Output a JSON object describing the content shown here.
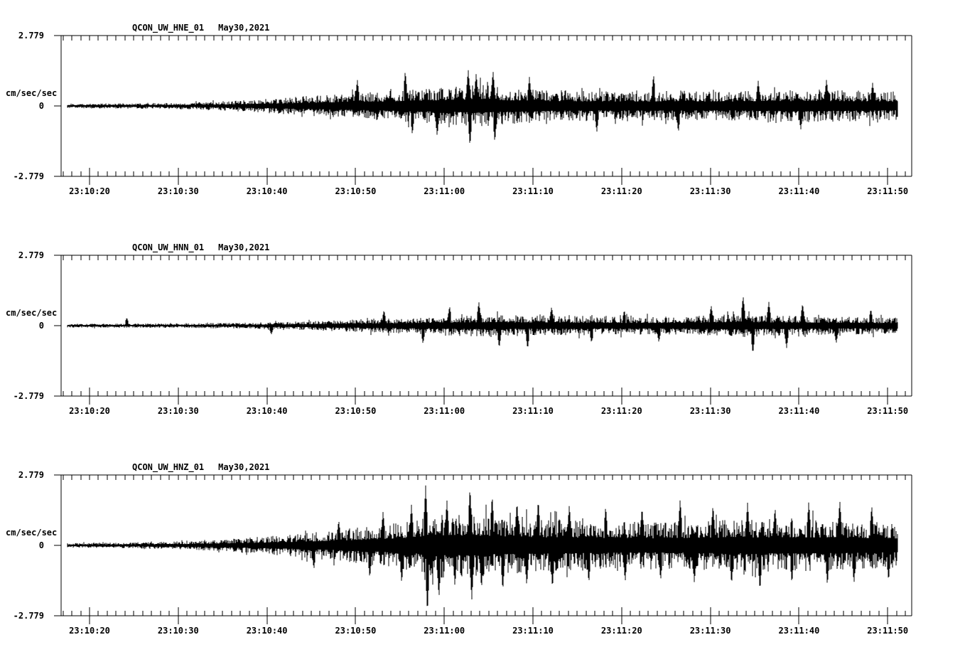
{
  "figure": {
    "background_color": "#ffffff",
    "ink_color": "#000000"
  },
  "chart_data": {
    "type": "line",
    "subtype": "seismogram",
    "station": "QCON",
    "network": "UW",
    "location_code": "01",
    "date_label": "May30,2021",
    "ylabel": "cm/sec/sec",
    "ylim": [
      -2.779,
      2.779
    ],
    "ytick_labels": [
      "2.779",
      "0",
      "-2.779"
    ],
    "xtick_labels": [
      "23:10:20",
      "23:10:30",
      "23:10:40",
      "23:10:50",
      "23:11:00",
      "23:11:10",
      "23:11:20",
      "23:11:30",
      "23:11:40",
      "23:11:50"
    ],
    "xtick_seconds": [
      0,
      10,
      20,
      30,
      40,
      50,
      60,
      70,
      80,
      90
    ],
    "minor_tick_interval_s": 1,
    "grid": "off",
    "legend": "none",
    "time_axis": {
      "reference_time": "23:10:20",
      "axis_start_s": -3.2,
      "axis_end_s": 92.7,
      "data_start_s": -2.5,
      "data_end_s": 91.1
    },
    "series_note": "envelope = [seconds after 23:10:20, peak amplitude cm/sec/sec]; spikes = [seconds, signed peak amplitude]",
    "panels": [
      {
        "channel": "HNE",
        "title": "QCON_UW_HNE_01",
        "date": "May30,2021",
        "envelope": [
          [
            -2.5,
            0.09
          ],
          [
            0,
            0.1
          ],
          [
            6,
            0.11
          ],
          [
            12,
            0.14
          ],
          [
            17,
            0.22
          ],
          [
            22,
            0.33
          ],
          [
            27,
            0.45
          ],
          [
            32,
            0.55
          ],
          [
            36,
            0.65
          ],
          [
            40,
            0.75
          ],
          [
            44,
            0.85
          ],
          [
            47,
            0.75
          ],
          [
            51,
            0.65
          ],
          [
            56,
            0.6
          ],
          [
            61,
            0.57
          ],
          [
            66,
            0.62
          ],
          [
            71,
            0.57
          ],
          [
            76,
            0.62
          ],
          [
            81,
            0.65
          ],
          [
            86,
            0.62
          ],
          [
            91,
            0.57
          ]
        ],
        "spikes": [
          [
            30.2,
            1.05
          ],
          [
            35.6,
            1.4
          ],
          [
            36.4,
            -1.15
          ],
          [
            39.2,
            -1.2
          ],
          [
            42.7,
            1.45
          ],
          [
            42.9,
            -1.6
          ],
          [
            43.6,
            1.3
          ],
          [
            45.5,
            1.4
          ],
          [
            45.7,
            -1.45
          ],
          [
            49.6,
            1.15
          ],
          [
            57.2,
            -1.05
          ],
          [
            63.6,
            1.25
          ],
          [
            66.4,
            -1.05
          ],
          [
            75.4,
            1.0
          ],
          [
            80.2,
            -0.95
          ],
          [
            83.1,
            1.05
          ],
          [
            88.3,
            0.92
          ]
        ]
      },
      {
        "channel": "HNN",
        "title": "QCON_UW_HNN_01",
        "date": "May30,2021",
        "envelope": [
          [
            -2.5,
            0.07
          ],
          [
            0,
            0.08
          ],
          [
            10,
            0.09
          ],
          [
            16,
            0.11
          ],
          [
            22,
            0.15
          ],
          [
            27,
            0.21
          ],
          [
            32,
            0.28
          ],
          [
            36,
            0.33
          ],
          [
            40,
            0.4
          ],
          [
            44,
            0.44
          ],
          [
            48,
            0.42
          ],
          [
            53,
            0.4
          ],
          [
            58,
            0.37
          ],
          [
            63,
            0.35
          ],
          [
            68,
            0.38
          ],
          [
            73,
            0.46
          ],
          [
            77,
            0.42
          ],
          [
            82,
            0.38
          ],
          [
            87,
            0.35
          ],
          [
            91,
            0.33
          ]
        ],
        "spikes": [
          [
            4.2,
            0.32
          ],
          [
            20.5,
            -0.35
          ],
          [
            33.2,
            0.62
          ],
          [
            37.6,
            -0.72
          ],
          [
            40.6,
            0.78
          ],
          [
            43.9,
            0.95
          ],
          [
            46.2,
            -0.88
          ],
          [
            49.4,
            -0.92
          ],
          [
            52.1,
            0.75
          ],
          [
            56.6,
            -0.68
          ],
          [
            60.3,
            0.62
          ],
          [
            64.2,
            -0.66
          ],
          [
            70.1,
            0.8
          ],
          [
            73.7,
            1.18
          ],
          [
            74.8,
            -1.12
          ],
          [
            76.6,
            0.95
          ],
          [
            78.6,
            -0.9
          ],
          [
            80.4,
            0.88
          ],
          [
            84.2,
            -0.7
          ],
          [
            88.1,
            0.66
          ]
        ]
      },
      {
        "channel": "HNZ",
        "title": "QCON_UW_HNZ_01",
        "date": "May30,2021",
        "envelope": [
          [
            -2.5,
            0.09
          ],
          [
            0,
            0.1
          ],
          [
            5,
            0.12
          ],
          [
            10,
            0.16
          ],
          [
            15,
            0.23
          ],
          [
            20,
            0.36
          ],
          [
            24,
            0.48
          ],
          [
            28,
            0.62
          ],
          [
            31,
            0.75
          ],
          [
            34,
            0.88
          ],
          [
            37,
            1.08
          ],
          [
            39,
            1.35
          ],
          [
            41,
            1.22
          ],
          [
            43,
            1.35
          ],
          [
            45,
            1.18
          ],
          [
            48,
            1.12
          ],
          [
            52,
            1.05
          ],
          [
            56,
            1.0
          ],
          [
            60,
            0.95
          ],
          [
            64,
            0.92
          ],
          [
            68,
            0.98
          ],
          [
            72,
            1.02
          ],
          [
            76,
            1.05
          ],
          [
            80,
            1.05
          ],
          [
            84,
            1.0
          ],
          [
            88,
            0.95
          ],
          [
            91,
            0.9
          ]
        ],
        "spikes": [
          [
            25.3,
            -0.95
          ],
          [
            28.1,
            1.0
          ],
          [
            31.6,
            -1.3
          ],
          [
            33.1,
            1.35
          ],
          [
            35.2,
            -1.5
          ],
          [
            36.3,
            1.62
          ],
          [
            37.9,
            2.38
          ],
          [
            38.1,
            -2.7
          ],
          [
            39.4,
            -2.1
          ],
          [
            40.3,
            1.8
          ],
          [
            41.2,
            -1.62
          ],
          [
            42.9,
            2.3
          ],
          [
            43.1,
            -2.2
          ],
          [
            44.2,
            -1.72
          ],
          [
            45.4,
            2.0
          ],
          [
            46.6,
            -1.8
          ],
          [
            48.2,
            1.72
          ],
          [
            49.3,
            -1.6
          ],
          [
            50.6,
            1.8
          ],
          [
            52.2,
            -1.7
          ],
          [
            54.1,
            1.62
          ],
          [
            56.3,
            -1.5
          ],
          [
            58.2,
            1.56
          ],
          [
            60.4,
            -1.45
          ],
          [
            62.3,
            1.5
          ],
          [
            64.4,
            -1.4
          ],
          [
            66.6,
            1.85
          ],
          [
            68.2,
            -1.5
          ],
          [
            70.3,
            1.6
          ],
          [
            72.4,
            -1.55
          ],
          [
            74.2,
            1.7
          ],
          [
            75.6,
            -1.8
          ],
          [
            77.3,
            1.5
          ],
          [
            79.2,
            -1.52
          ],
          [
            81.1,
            1.75
          ],
          [
            83.2,
            -1.6
          ],
          [
            84.6,
            1.8
          ],
          [
            86.2,
            -1.52
          ],
          [
            88.2,
            1.6
          ],
          [
            90.1,
            -1.42
          ]
        ]
      }
    ]
  }
}
